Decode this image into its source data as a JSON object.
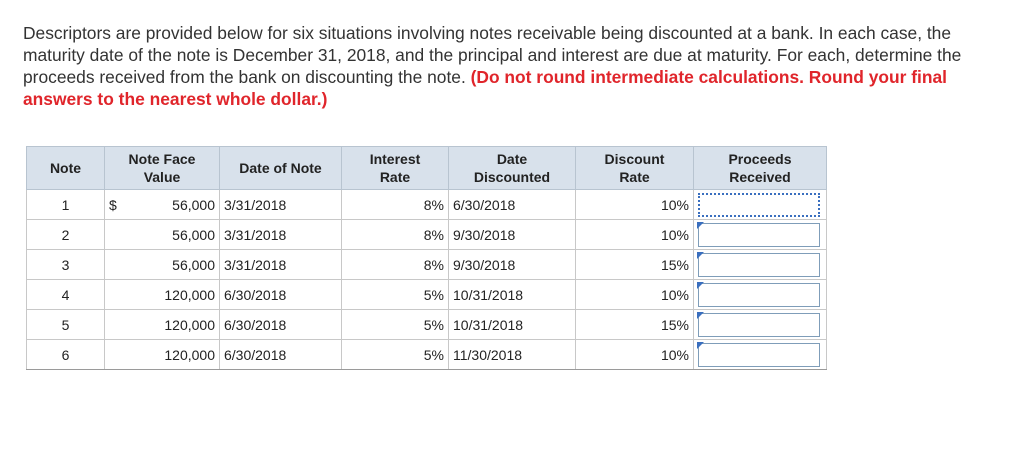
{
  "instructions": {
    "main": "Descriptors are provided below for six situations involving notes receivable being discounted at a bank. In each case, the maturity date of the note is December 31, 2018, and the principal and interest are due at maturity. For each, determine the proceeds received from the bank on discounting the note.",
    "emphasis": "(Do not round intermediate calculations. Round your final answers to the nearest whole dollar.)"
  },
  "table": {
    "headers": {
      "note": "Note",
      "face_value": "Note Face Value",
      "date_of_note": "Date of Note",
      "interest_rate": "Interest Rate",
      "date_discounted": "Date Discounted",
      "discount_rate": "Discount Rate",
      "proceeds": "Proceeds Received"
    },
    "currency_symbol": "$",
    "rows": [
      {
        "note": "1",
        "face_value": "56,000",
        "date_of_note": "3/31/2018",
        "interest_rate": "8%",
        "date_discounted": "6/30/2018",
        "discount_rate": "10%",
        "proceeds": ""
      },
      {
        "note": "2",
        "face_value": "56,000",
        "date_of_note": "3/31/2018",
        "interest_rate": "8%",
        "date_discounted": "9/30/2018",
        "discount_rate": "10%",
        "proceeds": ""
      },
      {
        "note": "3",
        "face_value": "56,000",
        "date_of_note": "3/31/2018",
        "interest_rate": "8%",
        "date_discounted": "9/30/2018",
        "discount_rate": "15%",
        "proceeds": ""
      },
      {
        "note": "4",
        "face_value": "120,000",
        "date_of_note": "6/30/2018",
        "interest_rate": "5%",
        "date_discounted": "10/31/2018",
        "discount_rate": "10%",
        "proceeds": ""
      },
      {
        "note": "5",
        "face_value": "120,000",
        "date_of_note": "6/30/2018",
        "interest_rate": "5%",
        "date_discounted": "10/31/2018",
        "discount_rate": "15%",
        "proceeds": ""
      },
      {
        "note": "6",
        "face_value": "120,000",
        "date_of_note": "6/30/2018",
        "interest_rate": "5%",
        "date_discounted": "11/30/2018",
        "discount_rate": "10%",
        "proceeds": ""
      }
    ]
  },
  "colors": {
    "emphasis": "#e0252b",
    "header_bg": "#d8e1eb",
    "input_border": "#7f9db9",
    "flag": "#3a6fbf"
  }
}
